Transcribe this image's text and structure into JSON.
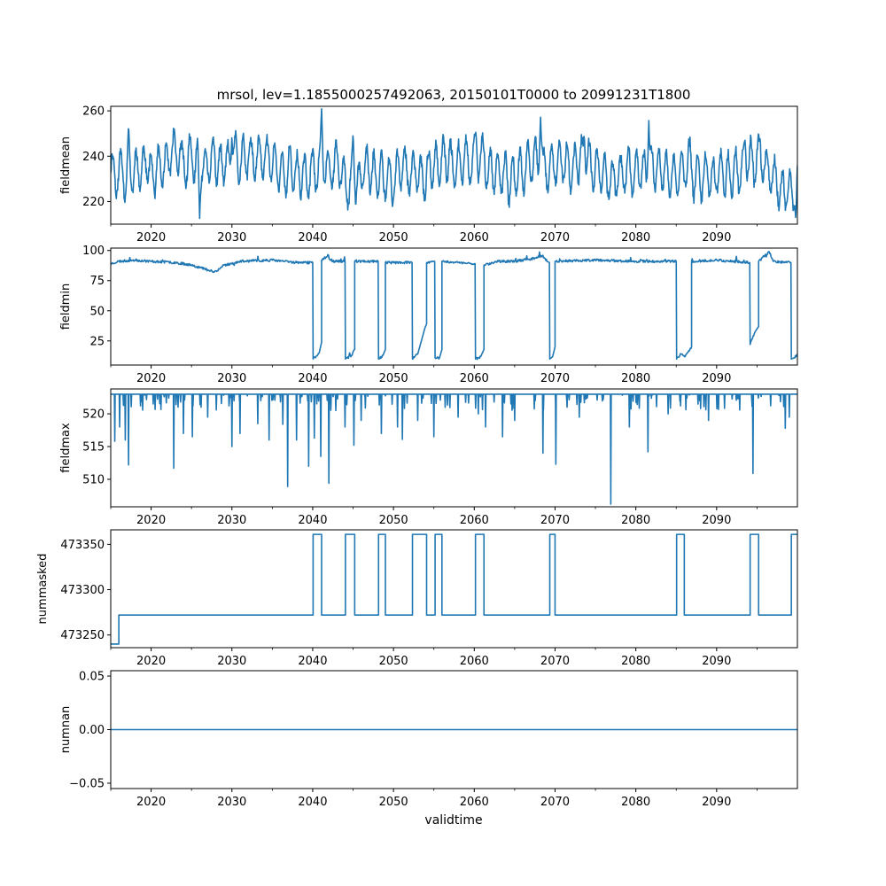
{
  "figure": {
    "title": "mrsol, lev=1.1855000257492063, 20150101T0000 to 20991231T1800",
    "xlabel": "validtime",
    "line_color": "#1f77b4"
  },
  "chart_data": [
    {
      "type": "line",
      "ylabel": "fieldmean",
      "xlim": [
        2015.0,
        2100.0
      ],
      "ylim": [
        210,
        262
      ],
      "xticks": [
        "2020",
        "2030",
        "2040",
        "2050",
        "2060",
        "2070",
        "2080",
        "2090"
      ],
      "yticks": [
        "220",
        "240",
        "260"
      ],
      "series": [
        {
          "name": "fieldmean",
          "mode": "noise",
          "seed": 11,
          "base": 234,
          "amp": 9,
          "noise": 2.2,
          "points": 1600,
          "min": 212,
          "max": 261,
          "peaks": [
            [
              2041.1,
              261
            ],
            [
              2068.2,
              259
            ],
            [
              2081.6,
              257
            ],
            [
              2017.2,
              254
            ],
            [
              2030.0,
              249
            ],
            [
              2060.2,
              251
            ],
            [
              2045.0,
              251
            ],
            [
              2073.6,
              250
            ],
            [
              2093.5,
              248
            ],
            [
              2099.8,
              212
            ],
            [
              2026.0,
              212
            ]
          ]
        }
      ]
    },
    {
      "type": "line",
      "ylabel": "fieldmin",
      "xlim": [
        2015.0,
        2100.0
      ],
      "ylim": [
        5,
        102
      ],
      "xticks": [
        "2020",
        "2030",
        "2040",
        "2050",
        "2060",
        "2070",
        "2080",
        "2090"
      ],
      "yticks": [
        "25",
        "50",
        "75",
        "100"
      ],
      "series": [
        {
          "name": "fieldmin",
          "mode": "steps",
          "seed": 23,
          "jitter": 1.0,
          "points": [
            [
              2015.0,
              89
            ],
            [
              2016.0,
              91
            ],
            [
              2018.0,
              92
            ],
            [
              2020.0,
              91
            ],
            [
              2023.0,
              90
            ],
            [
              2025.0,
              88
            ],
            [
              2027.0,
              84
            ],
            [
              2027.8,
              82
            ],
            [
              2028.2,
              83
            ],
            [
              2029.0,
              88
            ],
            [
              2030.0,
              89
            ],
            [
              2031.0,
              91
            ],
            [
              2035.0,
              92
            ],
            [
              2038.0,
              90
            ],
            [
              2040.0,
              90
            ],
            [
              2040.05,
              10
            ],
            [
              2040.8,
              15
            ],
            [
              2041.1,
              24
            ],
            [
              2041.1,
              92
            ],
            [
              2041.8,
              95
            ],
            [
              2042.5,
              91
            ],
            [
              2044.0,
              91
            ],
            [
              2044.05,
              10
            ],
            [
              2044.8,
              13
            ],
            [
              2045.2,
              18
            ],
            [
              2045.2,
              91
            ],
            [
              2047.0,
              91
            ],
            [
              2048.1,
              91
            ],
            [
              2048.15,
              10
            ],
            [
              2048.7,
              13
            ],
            [
              2049.0,
              18
            ],
            [
              2049.0,
              90
            ],
            [
              2051.0,
              90
            ],
            [
              2052.3,
              90
            ],
            [
              2052.35,
              10
            ],
            [
              2053.0,
              14
            ],
            [
              2053.9,
              36
            ],
            [
              2054.1,
              39
            ],
            [
              2054.1,
              90
            ],
            [
              2055.0,
              91
            ],
            [
              2055.1,
              91
            ],
            [
              2055.15,
              11
            ],
            [
              2055.7,
              11
            ],
            [
              2056.0,
              18
            ],
            [
              2056.0,
              91
            ],
            [
              2058.0,
              90
            ],
            [
              2060.1,
              89
            ],
            [
              2060.15,
              10
            ],
            [
              2060.8,
              12
            ],
            [
              2061.2,
              18
            ],
            [
              2061.2,
              88
            ],
            [
              2063.0,
              91
            ],
            [
              2065.0,
              91
            ],
            [
              2067.0,
              93
            ],
            [
              2068.5,
              96
            ],
            [
              2069.0,
              91
            ],
            [
              2069.3,
              90
            ],
            [
              2069.35,
              10
            ],
            [
              2069.7,
              12
            ],
            [
              2070.0,
              20
            ],
            [
              2070.0,
              91
            ],
            [
              2075.0,
              92
            ],
            [
              2080.0,
              91
            ],
            [
              2085.0,
              91
            ],
            [
              2085.05,
              10
            ],
            [
              2085.6,
              14
            ],
            [
              2086.1,
              12
            ],
            [
              2086.9,
              20
            ],
            [
              2086.9,
              91
            ],
            [
              2090.0,
              92
            ],
            [
              2094.1,
              90
            ],
            [
              2094.15,
              22
            ],
            [
              2094.8,
              33
            ],
            [
              2095.2,
              37
            ],
            [
              2095.2,
              91
            ],
            [
              2096.5,
              99
            ],
            [
              2097.0,
              91
            ],
            [
              2099.2,
              90
            ],
            [
              2099.25,
              10
            ],
            [
              2099.6,
              11
            ],
            [
              2100.0,
              14
            ]
          ]
        }
      ]
    },
    {
      "type": "line",
      "ylabel": "fieldmax",
      "xlim": [
        2015.0,
        2100.0
      ],
      "ylim": [
        505.8,
        523.8
      ],
      "xticks": [
        "2020",
        "2030",
        "2040",
        "2050",
        "2060",
        "2070",
        "2080",
        "2090"
      ],
      "yticks": [
        "510",
        "515",
        "520"
      ],
      "series": [
        {
          "name": "fieldmax",
          "mode": "spikes",
          "seed": 37,
          "base": 523.0,
          "random_spike_count": 150,
          "random_spike_min": 520.5,
          "spikes": [
            [
              2015.5,
              515.8
            ],
            [
              2016.1,
              518.0
            ],
            [
              2016.8,
              516.0
            ],
            [
              2017.2,
              512.2
            ],
            [
              2022.8,
              511.7
            ],
            [
              2024.0,
              517.0
            ],
            [
              2025.1,
              516.5
            ],
            [
              2027.0,
              519.5
            ],
            [
              2030.0,
              515.0
            ],
            [
              2031.0,
              517.0
            ],
            [
              2033.2,
              518.5
            ],
            [
              2034.6,
              516.0
            ],
            [
              2036.3,
              518.4
            ],
            [
              2036.9,
              508.9
            ],
            [
              2038.0,
              516.0
            ],
            [
              2039.5,
              512.0
            ],
            [
              2040.2,
              516.3
            ],
            [
              2041.0,
              513.5
            ],
            [
              2042.0,
              509.4
            ],
            [
              2044.0,
              518.0
            ],
            [
              2045.1,
              515.2
            ],
            [
              2046.0,
              519.0
            ],
            [
              2048.5,
              517.0
            ],
            [
              2050.5,
              518.0
            ],
            [
              2051.1,
              516.1
            ],
            [
              2053.0,
              519.0
            ],
            [
              2055.0,
              516.5
            ],
            [
              2058.0,
              519.5
            ],
            [
              2060.5,
              520.0
            ],
            [
              2061.4,
              518.0
            ],
            [
              2063.5,
              516.5
            ],
            [
              2065.0,
              519.0
            ],
            [
              2068.5,
              514.0
            ],
            [
              2070.1,
              512.3
            ],
            [
              2073.0,
              519.5
            ],
            [
              2076.9,
              506.2
            ],
            [
              2079.2,
              518.0
            ],
            [
              2081.5,
              514.2
            ],
            [
              2084.0,
              520.0
            ],
            [
              2089.0,
              519.0
            ],
            [
              2094.5,
              510.9
            ],
            [
              2098.5,
              517.8
            ],
            [
              2099.0,
              519.5
            ]
          ]
        }
      ]
    },
    {
      "type": "line",
      "ylabel": "nummasked",
      "xlim": [
        2015.0,
        2100.0
      ],
      "ylim": [
        473236,
        473366
      ],
      "xticks": [
        "2020",
        "2030",
        "2040",
        "2050",
        "2060",
        "2070",
        "2080",
        "2090"
      ],
      "yticks": [
        "473250",
        "473300",
        "473350"
      ],
      "series": [
        {
          "name": "nummasked",
          "mode": "steps",
          "points": [
            [
              2015.0,
              473240
            ],
            [
              2016.0,
              473240
            ],
            [
              2016.0,
              473272
            ],
            [
              2040.05,
              473272
            ],
            [
              2040.05,
              473361
            ],
            [
              2041.1,
              473361
            ],
            [
              2041.1,
              473272
            ],
            [
              2044.05,
              473272
            ],
            [
              2044.05,
              473361
            ],
            [
              2045.2,
              473361
            ],
            [
              2045.2,
              473272
            ],
            [
              2048.15,
              473272
            ],
            [
              2048.15,
              473361
            ],
            [
              2049.0,
              473361
            ],
            [
              2049.0,
              473272
            ],
            [
              2052.35,
              473272
            ],
            [
              2052.35,
              473361
            ],
            [
              2054.1,
              473361
            ],
            [
              2054.1,
              473272
            ],
            [
              2055.15,
              473272
            ],
            [
              2055.15,
              473361
            ],
            [
              2056.0,
              473361
            ],
            [
              2056.0,
              473272
            ],
            [
              2060.15,
              473272
            ],
            [
              2060.15,
              473361
            ],
            [
              2061.2,
              473361
            ],
            [
              2061.2,
              473272
            ],
            [
              2069.35,
              473272
            ],
            [
              2069.35,
              473361
            ],
            [
              2070.0,
              473361
            ],
            [
              2070.0,
              473272
            ],
            [
              2085.05,
              473272
            ],
            [
              2085.05,
              473361
            ],
            [
              2086.0,
              473361
            ],
            [
              2086.0,
              473272
            ],
            [
              2094.15,
              473272
            ],
            [
              2094.15,
              473361
            ],
            [
              2095.2,
              473361
            ],
            [
              2095.2,
              473272
            ],
            [
              2099.25,
              473272
            ],
            [
              2099.25,
              473361
            ],
            [
              2100.0,
              473361
            ]
          ]
        }
      ]
    },
    {
      "type": "line",
      "ylabel": "numnan",
      "xlim": [
        2015.0,
        2100.0
      ],
      "ylim": [
        -0.055,
        0.055
      ],
      "xticks": [
        "2020",
        "2030",
        "2040",
        "2050",
        "2060",
        "2070",
        "2080",
        "2090"
      ],
      "yticks": [
        "0.05",
        "0.00",
        "−0.05"
      ],
      "series": [
        {
          "name": "numnan",
          "mode": "steps",
          "points": [
            [
              2015.0,
              0.0
            ],
            [
              2100.0,
              0.0
            ]
          ]
        }
      ]
    }
  ]
}
